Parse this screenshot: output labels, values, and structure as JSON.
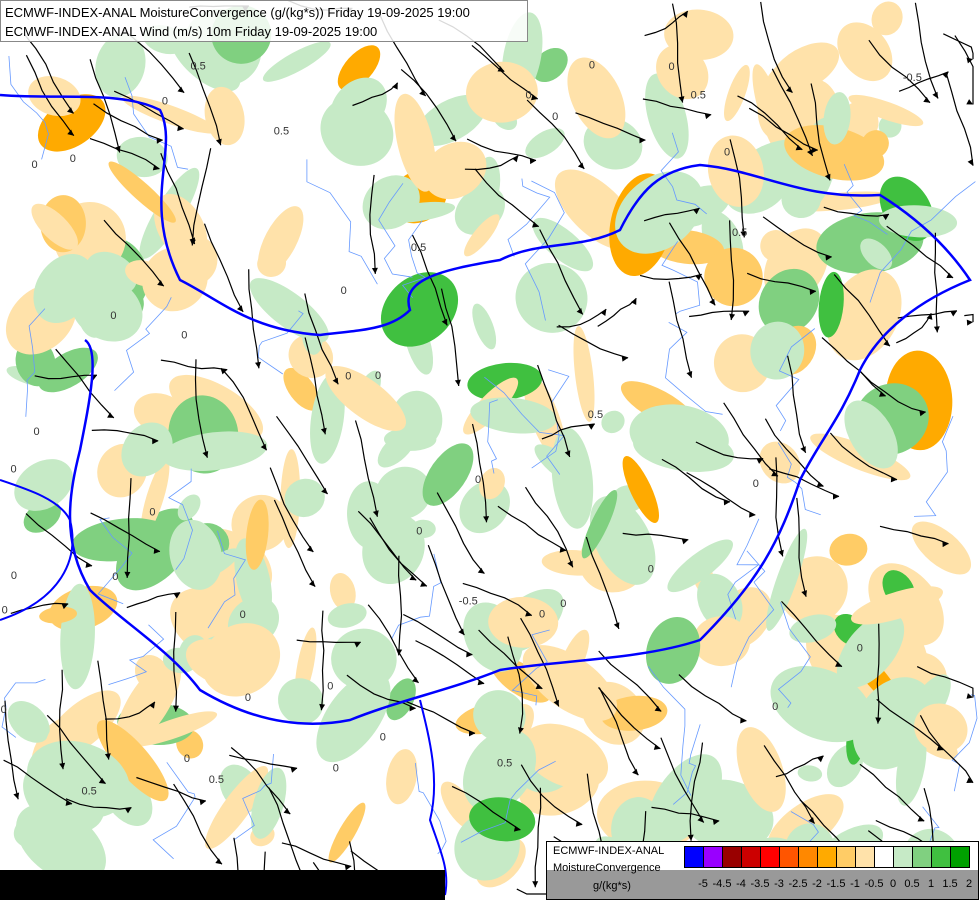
{
  "title": {
    "line1": "ECMWF-INDEX-ANAL MoistureConvergence (g/(kg*s)) Friday 19-09-2025 19:00",
    "line2": "ECMWF-INDEX-ANAL Wind (m/s) 10m Friday 19-09-2025 19:00"
  },
  "legend": {
    "model": "ECMWF-INDEX-ANAL",
    "parameter": "MoistureConvergence",
    "unit": "g/(kg*s)",
    "ticks": [
      "-5",
      "-4.5",
      "-4",
      "-3.5",
      "-3",
      "-2.5",
      "-2",
      "-1.5",
      "-1",
      "-0.5",
      "0",
      "0.5",
      "1",
      "1.5",
      "2"
    ],
    "colors": [
      "#0000ff",
      "#9900ff",
      "#990000",
      "#cc0000",
      "#ff0000",
      "#ff5500",
      "#ff8800",
      "#ffaa00",
      "#ffcc66",
      "#ffe2aa",
      "#ffffff",
      "#c6eac6",
      "#80d080",
      "#40c040",
      "#00a000"
    ]
  },
  "map_colors": {
    "border": "#0000ff",
    "river": "#6699ff",
    "streamline": "#000000"
  },
  "contour_labels": [
    "0",
    "0.5",
    "-0.5"
  ]
}
